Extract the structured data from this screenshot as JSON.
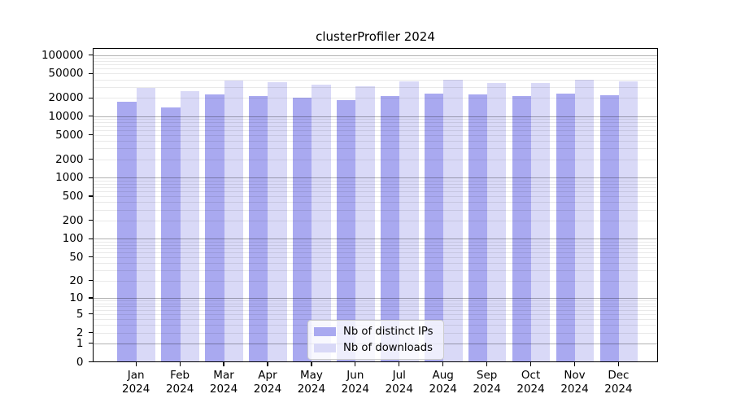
{
  "chart_data": {
    "type": "bar",
    "title": "clusterProfiler 2024",
    "categories": [
      "Jan",
      "Feb",
      "Mar",
      "Apr",
      "May",
      "Jun",
      "Jul",
      "Aug",
      "Sep",
      "Oct",
      "Nov",
      "Dec"
    ],
    "x_tick_year": "2024",
    "series": [
      {
        "name": "Nb of distinct IPs",
        "color": "#a9a9f0",
        "values": [
          17000,
          13900,
          22300,
          21300,
          19600,
          18300,
          21300,
          23000,
          22300,
          21000,
          23000,
          21900
        ]
      },
      {
        "name": "Nb of downloads",
        "color": "#d9d9f7",
        "values": [
          28200,
          25200,
          38000,
          35300,
          32600,
          30300,
          36300,
          38300,
          34100,
          34300,
          39100,
          36000
        ]
      }
    ],
    "yscale": "log1p",
    "ylim": [
      0,
      127000
    ],
    "y_ticks": [
      0,
      1,
      2,
      5,
      10,
      20,
      50,
      100,
      200,
      500,
      1000,
      2000,
      5000,
      10000,
      20000,
      50000,
      100000
    ],
    "grid": {
      "enabled": true,
      "major_color": "rgba(0,0,0,0.30)",
      "minor_color": "rgba(0,0,0,0.085)"
    },
    "legend": {
      "position": "lower center",
      "labels": [
        "Nb of distinct IPs",
        "Nb of downloads"
      ]
    },
    "colors": {
      "background": "#ffffff",
      "spine": "#000000",
      "text": "#000000"
    }
  }
}
